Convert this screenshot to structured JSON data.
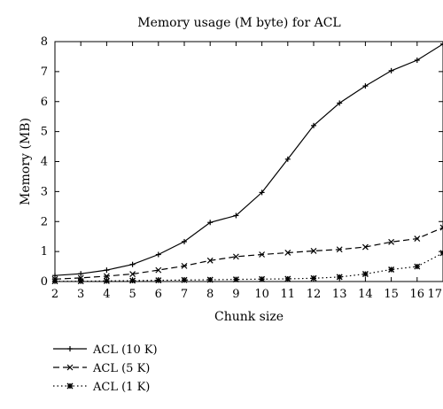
{
  "chart_data": {
    "type": "line",
    "title": "Memory usage (M byte) for ACL",
    "xlabel": "Chunk size",
    "ylabel": "Memory (MB)",
    "x": [
      2,
      3,
      4,
      5,
      6,
      7,
      8,
      9,
      10,
      11,
      12,
      13,
      14,
      15,
      16,
      17
    ],
    "xlim": [
      2,
      17
    ],
    "ylim": [
      0,
      8
    ],
    "xticks": [
      "2",
      "3",
      "4",
      "5",
      "6",
      "7",
      "8",
      "9",
      "10",
      "11",
      "12",
      "13",
      "14",
      "15",
      "16",
      "17"
    ],
    "yticks": [
      "0",
      "1",
      "2",
      "3",
      "4",
      "5",
      "6",
      "7",
      "8"
    ],
    "grid": false,
    "legend_position": "below",
    "series": [
      {
        "name": "ACL (10 K)",
        "values": [
          0.2,
          0.26,
          0.38,
          0.57,
          0.9,
          1.33,
          1.97,
          2.2,
          2.97,
          4.08,
          5.2,
          5.95,
          6.52,
          7.03,
          7.38,
          7.92
        ],
        "style": "solid",
        "marker": "plus"
      },
      {
        "name": "ACL (5 K)",
        "values": [
          0.08,
          0.12,
          0.18,
          0.25,
          0.38,
          0.52,
          0.7,
          0.83,
          0.9,
          0.96,
          1.02,
          1.07,
          1.15,
          1.32,
          1.43,
          1.8
        ],
        "style": "dashed",
        "marker": "x"
      },
      {
        "name": "ACL (1 K)",
        "values": [
          0.01,
          0.01,
          0.02,
          0.03,
          0.04,
          0.05,
          0.06,
          0.07,
          0.08,
          0.09,
          0.11,
          0.15,
          0.25,
          0.4,
          0.5,
          0.95
        ],
        "style": "dotted",
        "marker": "star"
      }
    ]
  }
}
